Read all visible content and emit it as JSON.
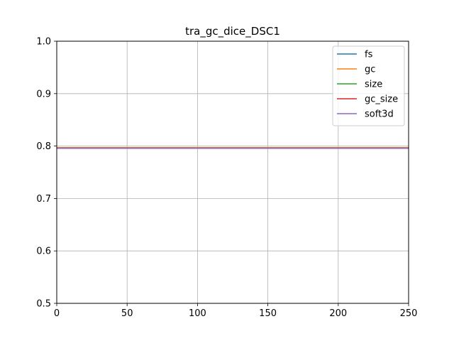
{
  "chart_data": {
    "type": "line",
    "title": "tra_gc_dice_DSC1",
    "xlabel": "",
    "ylabel": "",
    "xlim": [
      0,
      250
    ],
    "ylim": [
      0.5,
      1.0
    ],
    "xticks": [
      0,
      50,
      100,
      150,
      200,
      250
    ],
    "yticks": [
      0.5,
      0.6,
      0.7,
      0.8,
      0.9,
      1.0
    ],
    "xtick_labels": [
      "0",
      "50",
      "100",
      "150",
      "200",
      "250"
    ],
    "ytick_labels": [
      "0.5",
      "0.6",
      "0.7",
      "0.8",
      "0.9",
      "1.0"
    ],
    "grid": true,
    "legend_position": "top-right",
    "series": [
      {
        "name": "fs",
        "color": "#1f77b4",
        "x": [
          0,
          250
        ],
        "y": [
          0.796,
          0.796
        ]
      },
      {
        "name": "gc",
        "color": "#ff7f0e",
        "x": [
          0,
          250
        ],
        "y": [
          0.797,
          0.797
        ]
      },
      {
        "name": "size",
        "color": "#2ca02c",
        "x": [
          0,
          250
        ],
        "y": [
          0.796,
          0.796
        ]
      },
      {
        "name": "gc_size",
        "color": "#d62728",
        "x": [
          0,
          250
        ],
        "y": [
          0.796,
          0.796
        ]
      },
      {
        "name": "soft3d",
        "color": "#9467bd",
        "x": [
          0,
          250
        ],
        "y": [
          0.796,
          0.796
        ]
      }
    ]
  }
}
